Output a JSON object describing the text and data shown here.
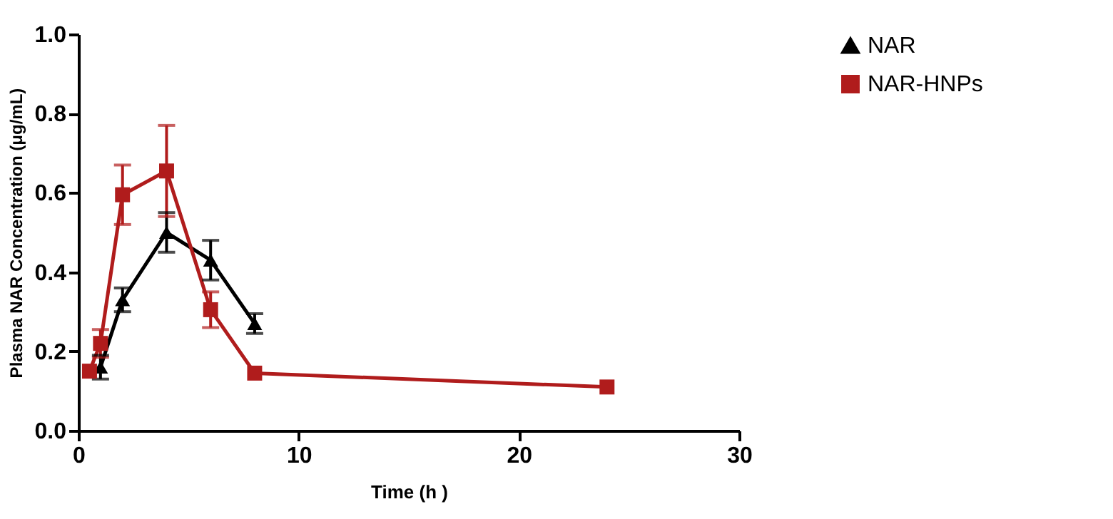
{
  "chart_data": {
    "type": "line",
    "xlabel": "Time (h )",
    "ylabel": "Plasma NAR Concentration (μg/mL)",
    "xlim": [
      0,
      30
    ],
    "xticks": [
      0,
      10,
      20,
      30
    ],
    "ylim": [
      0,
      1
    ],
    "yticks": [
      {
        "value": 0,
        "label": "0.0"
      },
      {
        "value": 0.2,
        "label": "0.2"
      },
      {
        "value": 0.4,
        "label": "0.4"
      },
      {
        "value": 0.6,
        "label": "0.6"
      },
      {
        "value": 0.8,
        "label": "0.8"
      },
      {
        "value": 1,
        "label": "1.0"
      }
    ],
    "grid": false,
    "legend": "right",
    "line_style": "solid",
    "series": [
      {
        "name": "NAR",
        "color": "#000000",
        "marker": "triangle",
        "x": [
          1,
          2,
          4,
          6,
          8
        ],
        "values": [
          0.16,
          0.33,
          0.5,
          0.43,
          0.27
        ],
        "errors": [
          0.03,
          0.03,
          0.05,
          0.05,
          0.025
        ]
      },
      {
        "name": "NAR-HNPs",
        "color": "#b01c1c",
        "marker": "square",
        "x": [
          0.5,
          1,
          2,
          4,
          6,
          8,
          24
        ],
        "values": [
          0.15,
          0.22,
          0.595,
          0.655,
          0.305,
          0.145,
          0.11
        ],
        "errors": [
          null,
          0.035,
          0.075,
          0.115,
          0.045,
          null,
          null
        ]
      }
    ]
  }
}
